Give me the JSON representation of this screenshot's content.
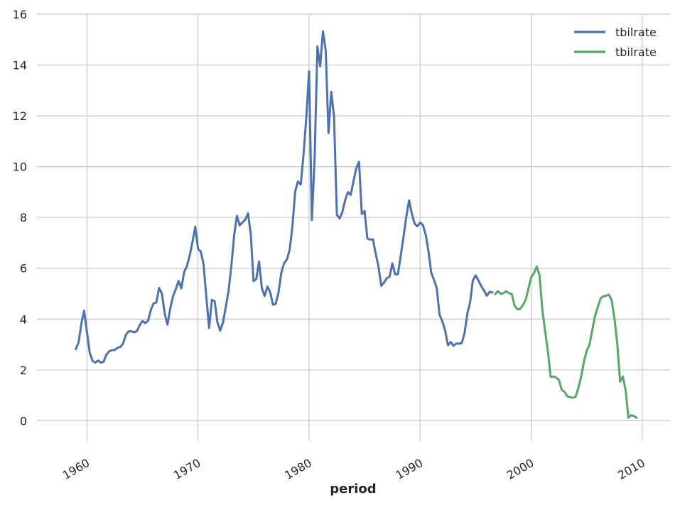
{
  "chart_data": {
    "type": "line",
    "title": "",
    "xlabel": "period",
    "ylabel": "",
    "xlim": [
      1955.5,
      2012.5
    ],
    "ylim": [
      -0.8,
      16.0
    ],
    "xticks": [
      1960,
      1970,
      1980,
      1990,
      2000,
      2010
    ],
    "yticks": [
      0,
      2,
      4,
      6,
      8,
      10,
      12,
      14,
      16
    ],
    "grid": true,
    "legend_position": "top-right",
    "series": [
      {
        "name": "tbilrate",
        "color": "#4c72b0",
        "x": [
          1959.0,
          1959.25,
          1959.5,
          1959.75,
          1960.0,
          1960.25,
          1960.5,
          1960.75,
          1961.0,
          1961.25,
          1961.5,
          1961.75,
          1962.0,
          1962.25,
          1962.5,
          1962.75,
          1963.0,
          1963.25,
          1963.5,
          1963.75,
          1964.0,
          1964.25,
          1964.5,
          1964.75,
          1965.0,
          1965.25,
          1965.5,
          1965.75,
          1966.0,
          1966.25,
          1966.5,
          1966.75,
          1967.0,
          1967.25,
          1967.5,
          1967.75,
          1968.0,
          1968.25,
          1968.5,
          1968.75,
          1969.0,
          1969.25,
          1969.5,
          1969.75,
          1970.0,
          1970.25,
          1970.5,
          1970.75,
          1971.0,
          1971.25,
          1971.5,
          1971.75,
          1972.0,
          1972.25,
          1972.5,
          1972.75,
          1973.0,
          1973.25,
          1973.5,
          1973.75,
          1974.0,
          1974.25,
          1974.5,
          1974.75,
          1975.0,
          1975.25,
          1975.5,
          1975.75,
          1976.0,
          1976.25,
          1976.5,
          1976.75,
          1977.0,
          1977.25,
          1977.5,
          1977.75,
          1978.0,
          1978.25,
          1978.5,
          1978.75,
          1979.0,
          1979.25,
          1979.5,
          1979.75,
          1980.0,
          1980.25,
          1980.5,
          1980.75,
          1981.0,
          1981.25,
          1981.5,
          1981.75,
          1982.0,
          1982.25,
          1982.5,
          1982.75,
          1983.0,
          1983.25,
          1983.5,
          1983.75,
          1984.0,
          1984.25,
          1984.5,
          1984.75,
          1985.0,
          1985.25,
          1985.5,
          1985.75,
          1986.0,
          1986.25,
          1986.5,
          1986.75,
          1987.0,
          1987.25,
          1987.5,
          1987.75,
          1988.0,
          1988.25,
          1988.5,
          1988.75,
          1989.0,
          1989.25,
          1989.5,
          1989.75,
          1990.0,
          1990.25,
          1990.5,
          1990.75,
          1991.0,
          1991.25,
          1991.5,
          1991.75,
          1992.0,
          1992.25,
          1992.5,
          1992.75,
          1993.0,
          1993.25,
          1993.5,
          1993.75,
          1994.0,
          1994.25,
          1994.5,
          1994.75,
          1995.0,
          1995.25,
          1995.5,
          1995.75,
          1996.0,
          1996.25,
          1996.5
        ],
        "values": [
          2.82,
          3.08,
          3.82,
          4.33,
          3.5,
          2.68,
          2.36,
          2.29,
          2.37,
          2.29,
          2.32,
          2.6,
          2.73,
          2.78,
          2.78,
          2.87,
          2.9,
          3.03,
          3.38,
          3.52,
          3.52,
          3.48,
          3.53,
          3.76,
          3.93,
          3.84,
          3.93,
          4.35,
          4.62,
          4.65,
          5.23,
          5.0,
          4.22,
          3.78,
          4.42,
          4.9,
          5.18,
          5.5,
          5.21,
          5.85,
          6.08,
          6.49,
          7.02,
          7.64,
          6.76,
          6.66,
          6.15,
          4.86,
          3.65,
          4.76,
          4.7,
          3.87,
          3.55,
          3.86,
          4.47,
          5.09,
          6.09,
          7.29,
          8.07,
          7.69,
          7.81,
          7.91,
          8.16,
          7.36,
          5.5,
          5.58,
          6.27,
          5.22,
          4.91,
          5.28,
          5.05,
          4.57,
          4.6,
          5.06,
          5.82,
          6.2,
          6.34,
          6.72,
          7.64,
          9.02,
          9.42,
          9.3,
          10.49,
          11.94,
          13.75,
          7.9,
          10.34,
          14.73,
          13.95,
          15.33,
          14.58,
          11.33,
          12.95,
          11.97,
          8.1,
          7.96,
          8.22,
          8.69,
          9.0,
          8.89,
          9.43,
          9.94,
          10.19,
          8.14,
          8.25,
          7.17,
          7.13,
          7.14,
          6.56,
          6.06,
          5.31,
          5.44,
          5.61,
          5.67,
          6.19,
          5.76,
          5.77,
          6.48,
          7.22,
          8.03,
          8.67,
          8.15,
          7.76,
          7.65,
          7.8,
          7.7,
          7.33,
          6.67,
          5.83,
          5.54,
          5.22,
          4.17,
          3.91,
          3.55,
          2.97,
          3.1,
          2.95,
          3.04,
          3.03,
          3.06,
          3.45,
          4.21,
          4.66,
          5.53,
          5.72,
          5.52,
          5.3,
          5.13,
          4.92,
          5.07,
          5.05
        ]
      },
      {
        "name": "tbilrate",
        "color": "#55a868",
        "x": [
          1996.75,
          1997.0,
          1997.25,
          1997.5,
          1997.75,
          1998.0,
          1998.25,
          1998.5,
          1998.75,
          1999.0,
          1999.25,
          1999.5,
          1999.75,
          2000.0,
          2000.25,
          2000.5,
          2000.75,
          2001.0,
          2001.25,
          2001.5,
          2001.75,
          2002.0,
          2002.25,
          2002.5,
          2002.75,
          2003.0,
          2003.25,
          2003.5,
          2003.75,
          2004.0,
          2004.25,
          2004.5,
          2004.75,
          2005.0,
          2005.25,
          2005.5,
          2005.75,
          2006.0,
          2006.25,
          2006.5,
          2006.75,
          2007.0,
          2007.25,
          2007.5,
          2007.75,
          2008.0,
          2008.25,
          2008.5,
          2008.75,
          2009.0,
          2009.25,
          2009.5
        ],
        "values": [
          4.98,
          5.1,
          5.0,
          5.02,
          5.1,
          5.02,
          4.99,
          4.52,
          4.39,
          4.4,
          4.55,
          4.76,
          5.2,
          5.65,
          5.81,
          6.07,
          5.73,
          4.39,
          3.55,
          2.72,
          1.73,
          1.74,
          1.7,
          1.6,
          1.21,
          1.14,
          0.96,
          0.93,
          0.9,
          0.95,
          1.3,
          1.73,
          2.34,
          2.76,
          3.0,
          3.57,
          4.13,
          4.49,
          4.82,
          4.9,
          4.92,
          4.96,
          4.73,
          4.02,
          3.0,
          1.54,
          1.74,
          1.2,
          0.12,
          0.22,
          0.18,
          0.12
        ]
      }
    ]
  }
}
